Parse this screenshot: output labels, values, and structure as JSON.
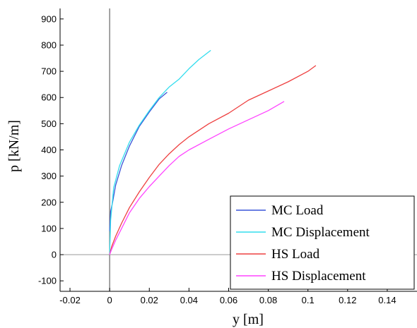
{
  "chart_data": {
    "type": "line",
    "xlabel": "y [m]",
    "ylabel": "p [kN/m]",
    "xlim": [
      -0.025,
      0.155
    ],
    "ylim": [
      -140,
      940
    ],
    "xticks": [
      -0.02,
      0,
      0.02,
      0.04,
      0.06,
      0.08,
      0.1,
      0.12,
      0.14
    ],
    "xtick_labels": [
      "-0.02",
      "0",
      "0.02",
      "0.04",
      "0.06",
      "0.08",
      "0.1",
      "0.12",
      "0.14"
    ],
    "yticks": [
      -100,
      0,
      100,
      200,
      300,
      400,
      500,
      600,
      700,
      800,
      900
    ],
    "ytick_labels": [
      "-100",
      "0",
      "100",
      "200",
      "300",
      "400",
      "500",
      "600",
      "700",
      "800",
      "900"
    ],
    "grid": false,
    "legend_position": "bottom-right",
    "series": [
      {
        "name": "MC Load",
        "color": "#3a55d8",
        "x": [
          0,
          0.0005,
          0.0015,
          0.003,
          0.006,
          0.01,
          0.015,
          0.02,
          0.025,
          0.029
        ],
        "y": [
          90,
          165,
          200,
          265,
          340,
          415,
          490,
          545,
          595,
          620
        ]
      },
      {
        "name": "MC Displacement",
        "color": "#33ddee",
        "x": [
          0,
          0.0005,
          0.002,
          0.005,
          0.01,
          0.015,
          0.02,
          0.025,
          0.03,
          0.035,
          0.04,
          0.045,
          0.051
        ],
        "y": [
          0,
          130,
          255,
          340,
          430,
          495,
          550,
          600,
          640,
          670,
          710,
          745,
          780
        ]
      },
      {
        "name": "HS Load",
        "color": "#ee4040",
        "x": [
          0,
          0.001,
          0.003,
          0.006,
          0.01,
          0.015,
          0.02,
          0.025,
          0.03,
          0.035,
          0.04,
          0.05,
          0.06,
          0.07,
          0.08,
          0.09,
          0.1,
          0.104
        ],
        "y": [
          0,
          30,
          70,
          120,
          180,
          240,
          295,
          345,
          385,
          420,
          450,
          500,
          540,
          590,
          625,
          660,
          700,
          722
        ]
      },
      {
        "name": "HS Displacement",
        "color": "#ff44ff",
        "x": [
          0,
          0.001,
          0.003,
          0.006,
          0.01,
          0.015,
          0.02,
          0.025,
          0.03,
          0.035,
          0.04,
          0.05,
          0.06,
          0.07,
          0.08,
          0.088
        ],
        "y": [
          0,
          20,
          55,
          100,
          160,
          215,
          260,
          300,
          340,
          375,
          400,
          440,
          480,
          515,
          550,
          585
        ]
      }
    ]
  }
}
